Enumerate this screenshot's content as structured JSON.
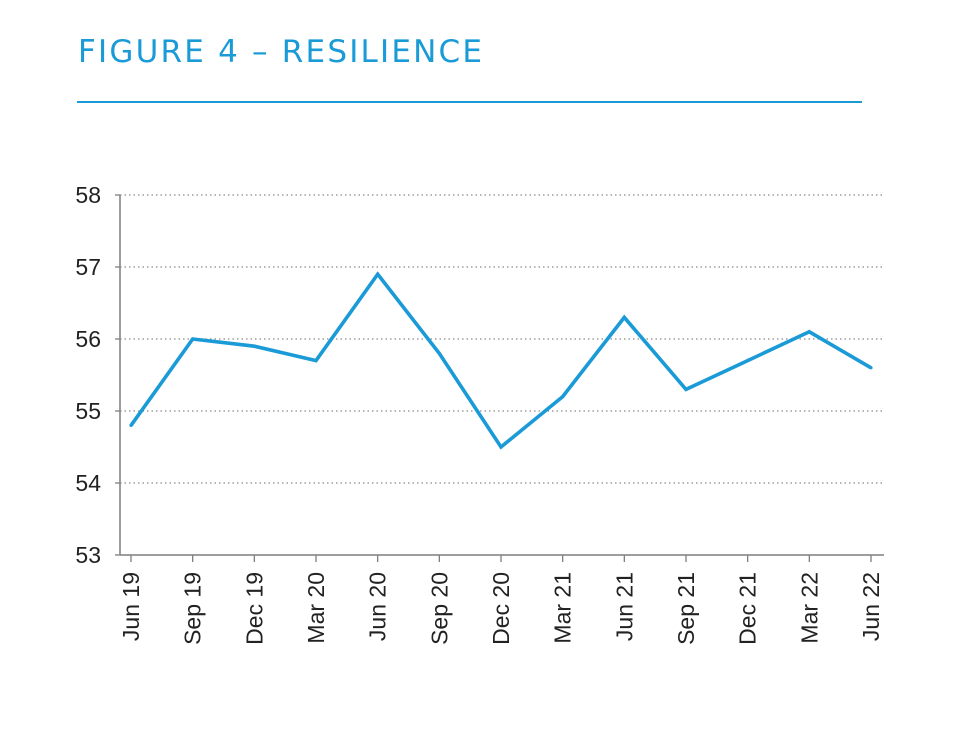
{
  "header": {
    "title": "FIGURE 4 – RESILIENCE",
    "accent_color": "#1a9ad6"
  },
  "chart_data": {
    "type": "line",
    "title": "FIGURE 4 – RESILIENCE",
    "xlabel": "",
    "ylabel": "",
    "categories": [
      "Jun 19",
      "Sep 19",
      "Dec 19",
      "Mar 20",
      "Jun 20",
      "Sep 20",
      "Dec 20",
      "Mar 21",
      "Jun 21",
      "Sep 21",
      "Dec 21",
      "Mar 22",
      "Jun 22"
    ],
    "series": [
      {
        "values": [
          54.8,
          56.0,
          55.9,
          55.7,
          56.9,
          55.8,
          54.5,
          55.2,
          56.3,
          55.3,
          55.7,
          56.1,
          55.6
        ],
        "color": "#1a9ad6"
      }
    ],
    "ylim": [
      53,
      58
    ],
    "yticks": [
      53,
      54,
      55,
      56,
      57,
      58
    ],
    "grid": "horizontal dotted",
    "legend": "none"
  }
}
